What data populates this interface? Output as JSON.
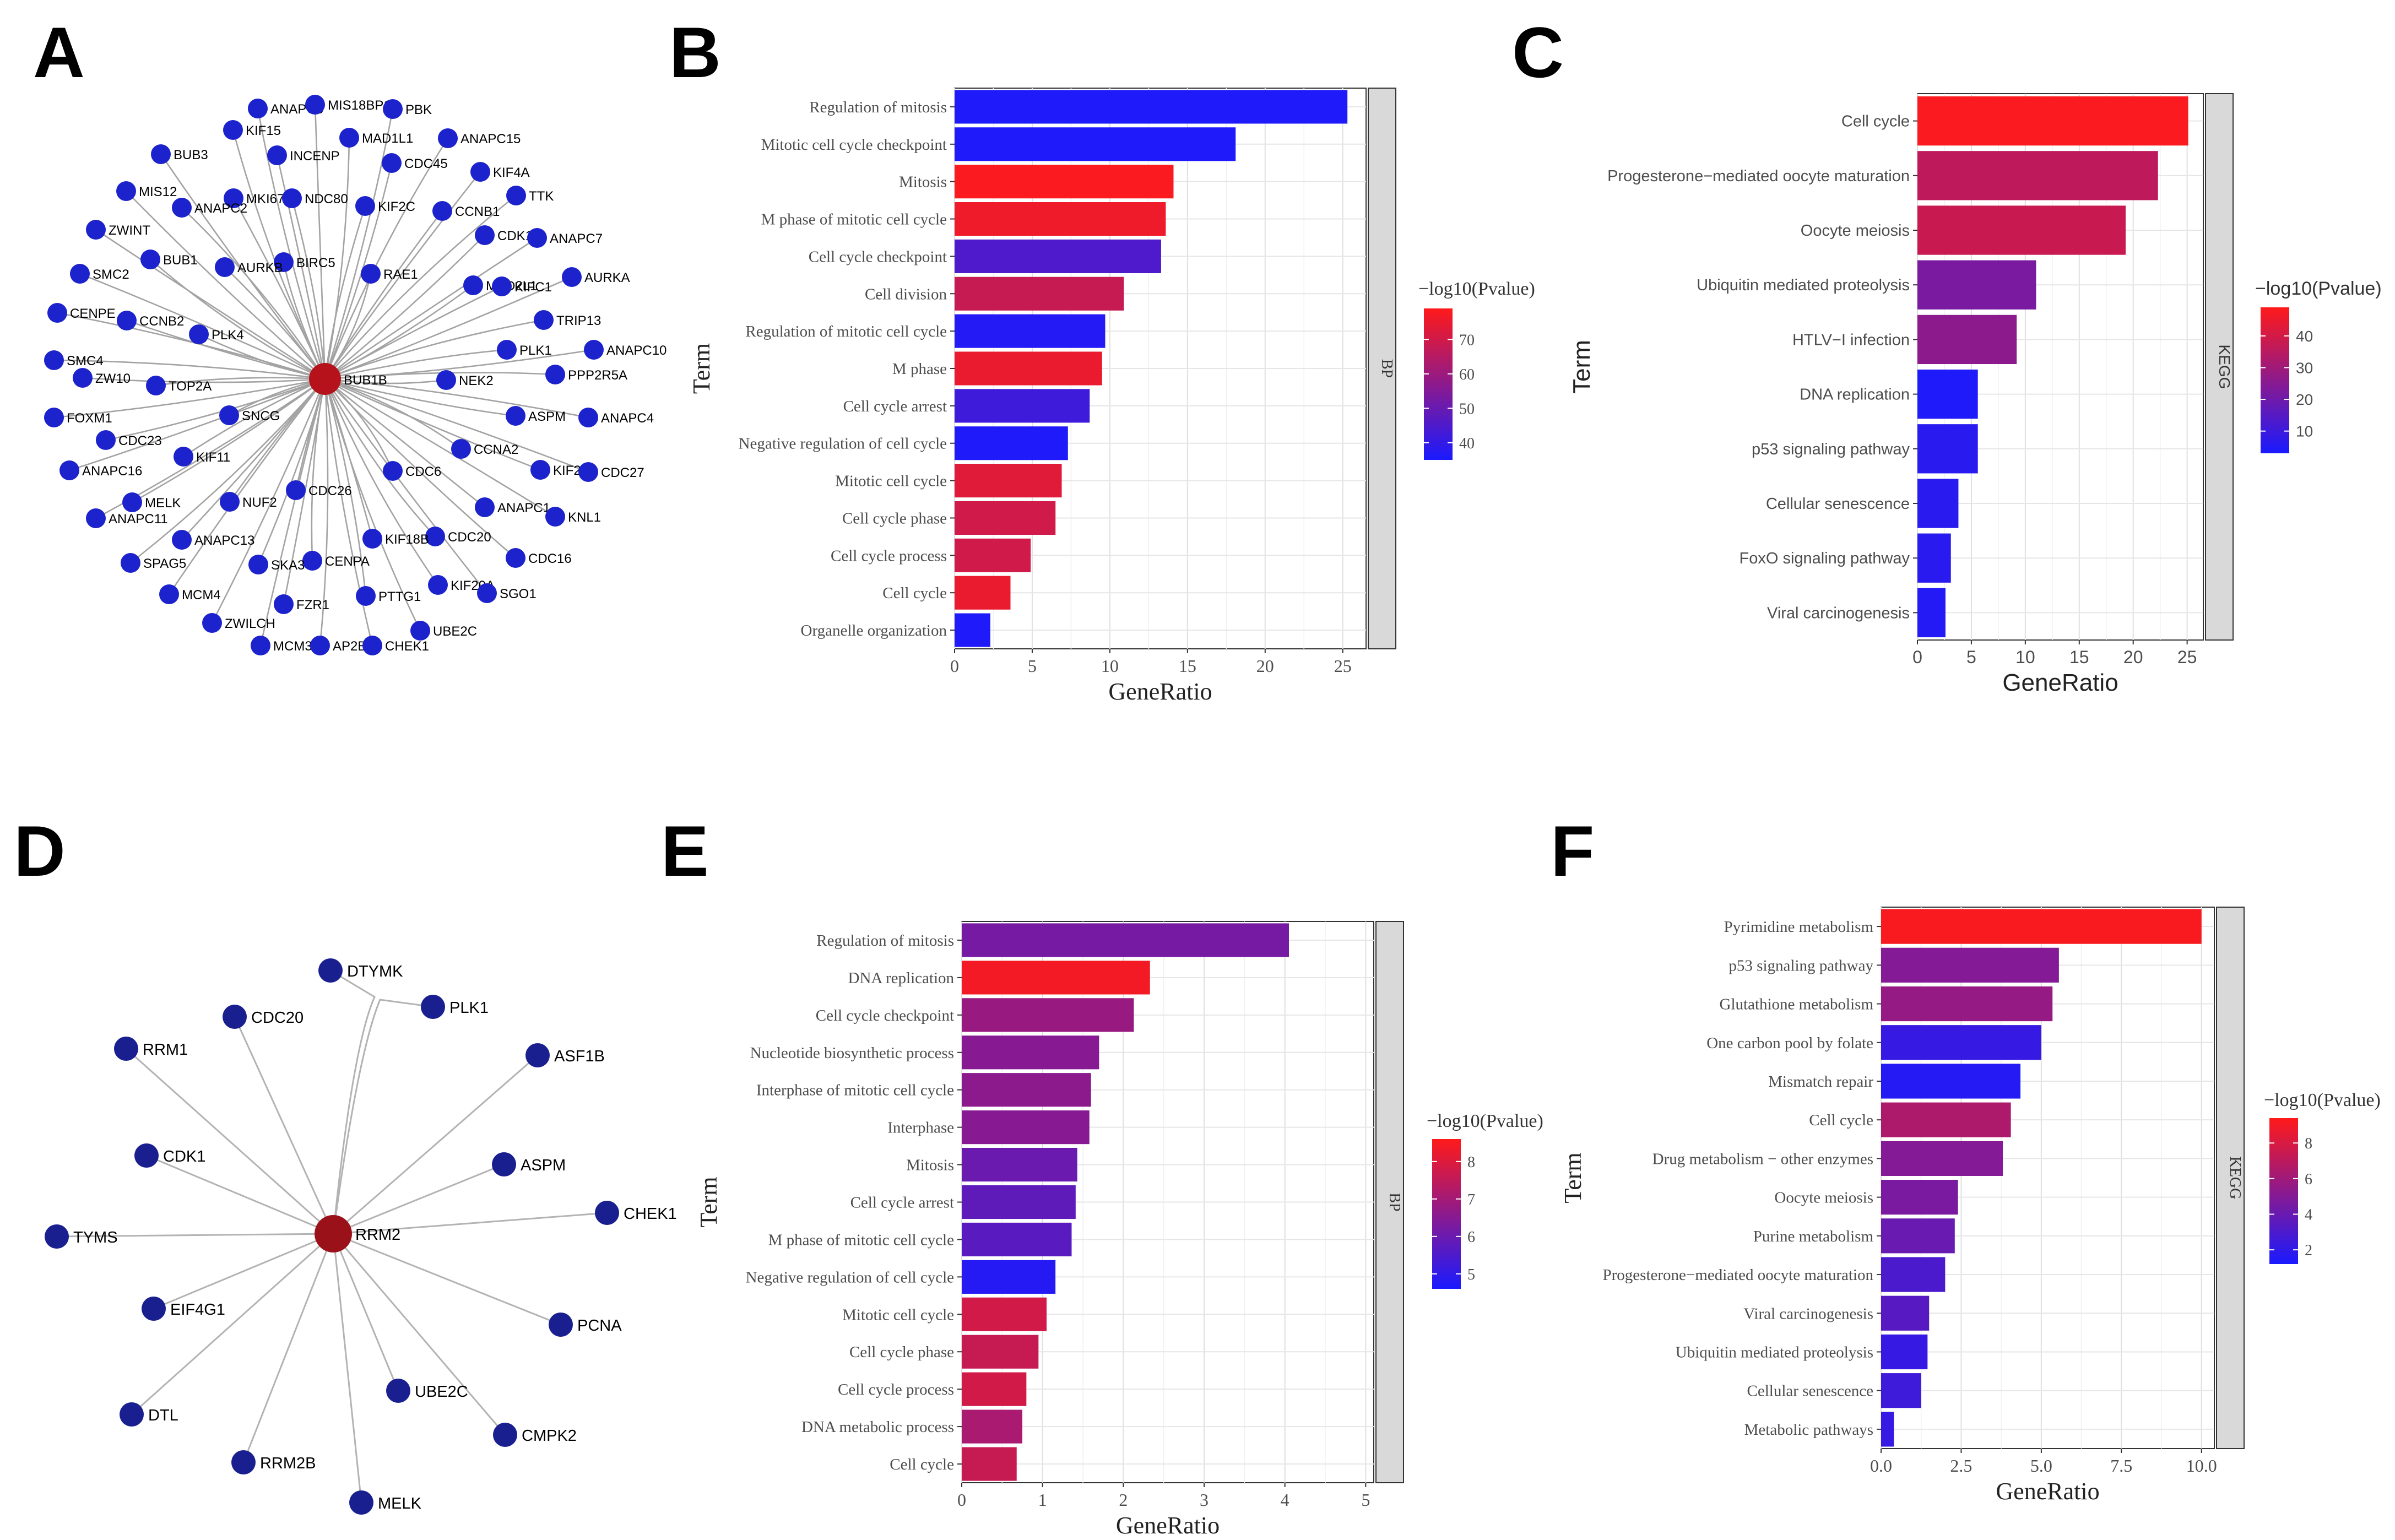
{
  "panel_labels": [
    "A",
    "B",
    "C",
    "D",
    "E",
    "F"
  ],
  "networks": [
    {
      "panel": "A",
      "hub": "BUB1B",
      "node_color": "#1c22cc",
      "hub_color": "#b5121b",
      "nodes": [
        "ANAPC5",
        "MIS18BP1",
        "PBK",
        "KIF15",
        "INCENP",
        "MAD1L1",
        "ANAPC15",
        "BUB3",
        "CDC45",
        "KIF4A",
        "MKI67",
        "NDC80",
        "TTK",
        "MIS12",
        "ANAPC2",
        "KIF2C",
        "CCNB1",
        "ZWINT",
        "BIRC5",
        "CDK1",
        "ANAPC7",
        "BUB1",
        "AURKB",
        "RAE1",
        "SMC2",
        "MAD2L1",
        "KIFC1",
        "AURKA",
        "CENPE",
        "CCNB2",
        "TRIP13",
        "PLK4",
        "PLK1",
        "ANAPC10",
        "SMC4",
        "ZW10",
        "TOP2A",
        "NEK2",
        "PPP2R5A",
        "FOXM1",
        "SNCG",
        "ASPM",
        "ANAPC4",
        "CDC23",
        "CCNA2",
        "ANAPC16",
        "KIF11",
        "KIF23",
        "CDC27",
        "MELK",
        "CDC6",
        "NUF2",
        "CDC26",
        "ANAPC1",
        "KNL1",
        "ANAPC11",
        "ANAPC13",
        "CDC20",
        "KIF18B",
        "SPAG5",
        "CENPA",
        "CDC16",
        "SKA3",
        "KIF20A",
        "MCM4",
        "PTTG1",
        "SGO1",
        "FZR1",
        "ZWILCH",
        "UBE2C",
        "MCM3",
        "AP2B1",
        "CHEK1"
      ]
    },
    {
      "panel": "D",
      "hub": "RRM2",
      "node_color": "#1a1f8f",
      "hub_color": "#9b1119",
      "nodes": [
        "DTYMK",
        "PLK1",
        "CDC20",
        "ASF1B",
        "RRM1",
        "ASPM",
        "CDK1",
        "CHEK1",
        "TYMS",
        "EIF4G1",
        "PCNA",
        "UBE2C",
        "DTL",
        "CMPK2",
        "RRM2B",
        "MELK"
      ]
    }
  ],
  "chart_data": [
    {
      "panel": "B",
      "type": "bar",
      "orientation": "horizontal",
      "xlabel": "GeneRatio",
      "ylabel": "Term",
      "facet": "BP",
      "xlim": [
        0,
        26.5
      ],
      "xticks": [
        0,
        5,
        10,
        15,
        20,
        25
      ],
      "legend": {
        "title": "−log10(Pvalue)",
        "range": [
          35,
          79
        ],
        "ticks": [
          40,
          50,
          60,
          70
        ],
        "low_color": "#1a1aff",
        "high_color": "#ff1a1a",
        "position": "right"
      },
      "categories": [
        "Regulation of mitosis",
        "Mitotic cell cycle checkpoint",
        "Mitosis",
        "M phase of mitotic cell cycle",
        "Cell cycle checkpoint",
        "Cell division",
        "Regulation of mitotic cell cycle",
        "M phase",
        "Cell cycle arrest",
        "Negative regulation of cell cycle",
        "Mitotic cell cycle",
        "Cell cycle phase",
        "Cell cycle process",
        "Cell cycle",
        "Organelle organization"
      ],
      "values": [
        25.3,
        18.1,
        14.1,
        13.6,
        13.3,
        10.9,
        9.7,
        9.5,
        8.7,
        7.3,
        6.9,
        6.5,
        4.9,
        3.6,
        2.3
      ],
      "pvalue": [
        36,
        36,
        78,
        76,
        45,
        68,
        37,
        75,
        42,
        36,
        73,
        70,
        70,
        75,
        36
      ]
    },
    {
      "panel": "C",
      "type": "bar",
      "orientation": "horizontal",
      "xlabel": "GeneRatio",
      "ylabel": "Term",
      "facet": "KEGG",
      "xlim": [
        0,
        26.5
      ],
      "xticks": [
        0,
        5,
        10,
        15,
        20,
        25
      ],
      "legend": {
        "title": "−log10(Pvalue)",
        "range": [
          3,
          49
        ],
        "ticks": [
          10,
          20,
          30,
          40
        ],
        "low_color": "#1a1aff",
        "high_color": "#ff1a1a",
        "position": "right"
      },
      "categories": [
        "Cell cycle",
        "Progesterone−mediated oocyte maturation",
        "Oocyte meiosis",
        "Ubiquitin mediated proteolysis",
        "HTLV−I infection",
        "DNA replication",
        "p53 signaling pathway",
        "Cellular senescence",
        "FoxO signaling pathway",
        "Viral carcinogenesis"
      ],
      "values": [
        25.1,
        22.3,
        19.3,
        11.0,
        9.2,
        5.6,
        5.6,
        3.8,
        3.1,
        2.6
      ],
      "pvalue": [
        48,
        36,
        38,
        22,
        26,
        4,
        6,
        6,
        6,
        5
      ]
    },
    {
      "panel": "E",
      "type": "bar",
      "orientation": "horizontal",
      "xlabel": "GeneRatio",
      "ylabel": "Term",
      "facet": "BP",
      "xlim": [
        0,
        5.1
      ],
      "xticks": [
        0,
        1,
        2,
        3,
        4,
        5
      ],
      "legend": {
        "title": "−log10(Pvalue)",
        "range": [
          4.6,
          8.6
        ],
        "ticks": [
          5,
          6,
          7,
          8
        ],
        "low_color": "#1a1aff",
        "high_color": "#ff1a1a",
        "position": "right"
      },
      "categories": [
        "Regulation of mitosis",
        "DNA replication",
        "Cell cycle checkpoint",
        "Nucleotide biosynthetic process",
        "Interphase of mitotic cell cycle",
        "Interphase",
        "Mitosis",
        "Cell cycle arrest",
        "M phase of mitotic cell cycle",
        "Negative regulation of cell cycle",
        "Mitotic cell cycle",
        "Cell cycle phase",
        "Cell cycle process",
        "DNA metabolic process",
        "Cell cycle"
      ],
      "values": [
        4.05,
        2.33,
        2.13,
        1.7,
        1.6,
        1.58,
        1.43,
        1.41,
        1.36,
        1.16,
        1.05,
        0.95,
        0.8,
        0.75,
        0.68
      ],
      "pvalue": [
        6.2,
        8.4,
        6.8,
        6.5,
        6.6,
        6.5,
        6.0,
        5.8,
        5.7,
        4.8,
        7.8,
        7.6,
        7.8,
        7.1,
        7.6
      ]
    },
    {
      "panel": "F",
      "type": "bar",
      "orientation": "horizontal",
      "xlabel": "GeneRatio",
      "ylabel": "Term",
      "facet": "KEGG",
      "xlim": [
        0,
        10.4
      ],
      "xticks": [
        0,
        2.5,
        5,
        7.5,
        10
      ],
      "xticklabels": [
        "0.0",
        "2.5",
        "5.0",
        "7.5",
        "10.0"
      ],
      "legend": {
        "title": "−log10(Pvalue)",
        "range": [
          1.2,
          9.4
        ],
        "ticks": [
          2,
          4,
          6,
          8
        ],
        "low_color": "#1a1aff",
        "high_color": "#ff1a1a",
        "position": "right"
      },
      "categories": [
        "Pyrimidine metabolism",
        "p53 signaling pathway",
        "Glutathione metabolism",
        "One carbon pool by folate",
        "Mismatch repair",
        "Cell cycle",
        "Drug metabolism − other enzymes",
        "Oocyte meiosis",
        "Purine metabolism",
        "Progesterone−mediated oocyte maturation",
        "Viral carcinogenesis",
        "Ubiquitin mediated proteolysis",
        "Cellular senescence",
        "Metabolic pathways"
      ],
      "values": [
        10.0,
        5.55,
        5.35,
        5.0,
        4.35,
        4.05,
        3.8,
        2.4,
        2.3,
        2.0,
        1.5,
        1.45,
        1.25,
        0.4
      ],
      "pvalue": [
        9.2,
        5.0,
        5.6,
        2.2,
        1.6,
        6.5,
        5.0,
        4.6,
        4.0,
        3.0,
        3.4,
        2.2,
        2.5,
        2.2
      ]
    }
  ]
}
